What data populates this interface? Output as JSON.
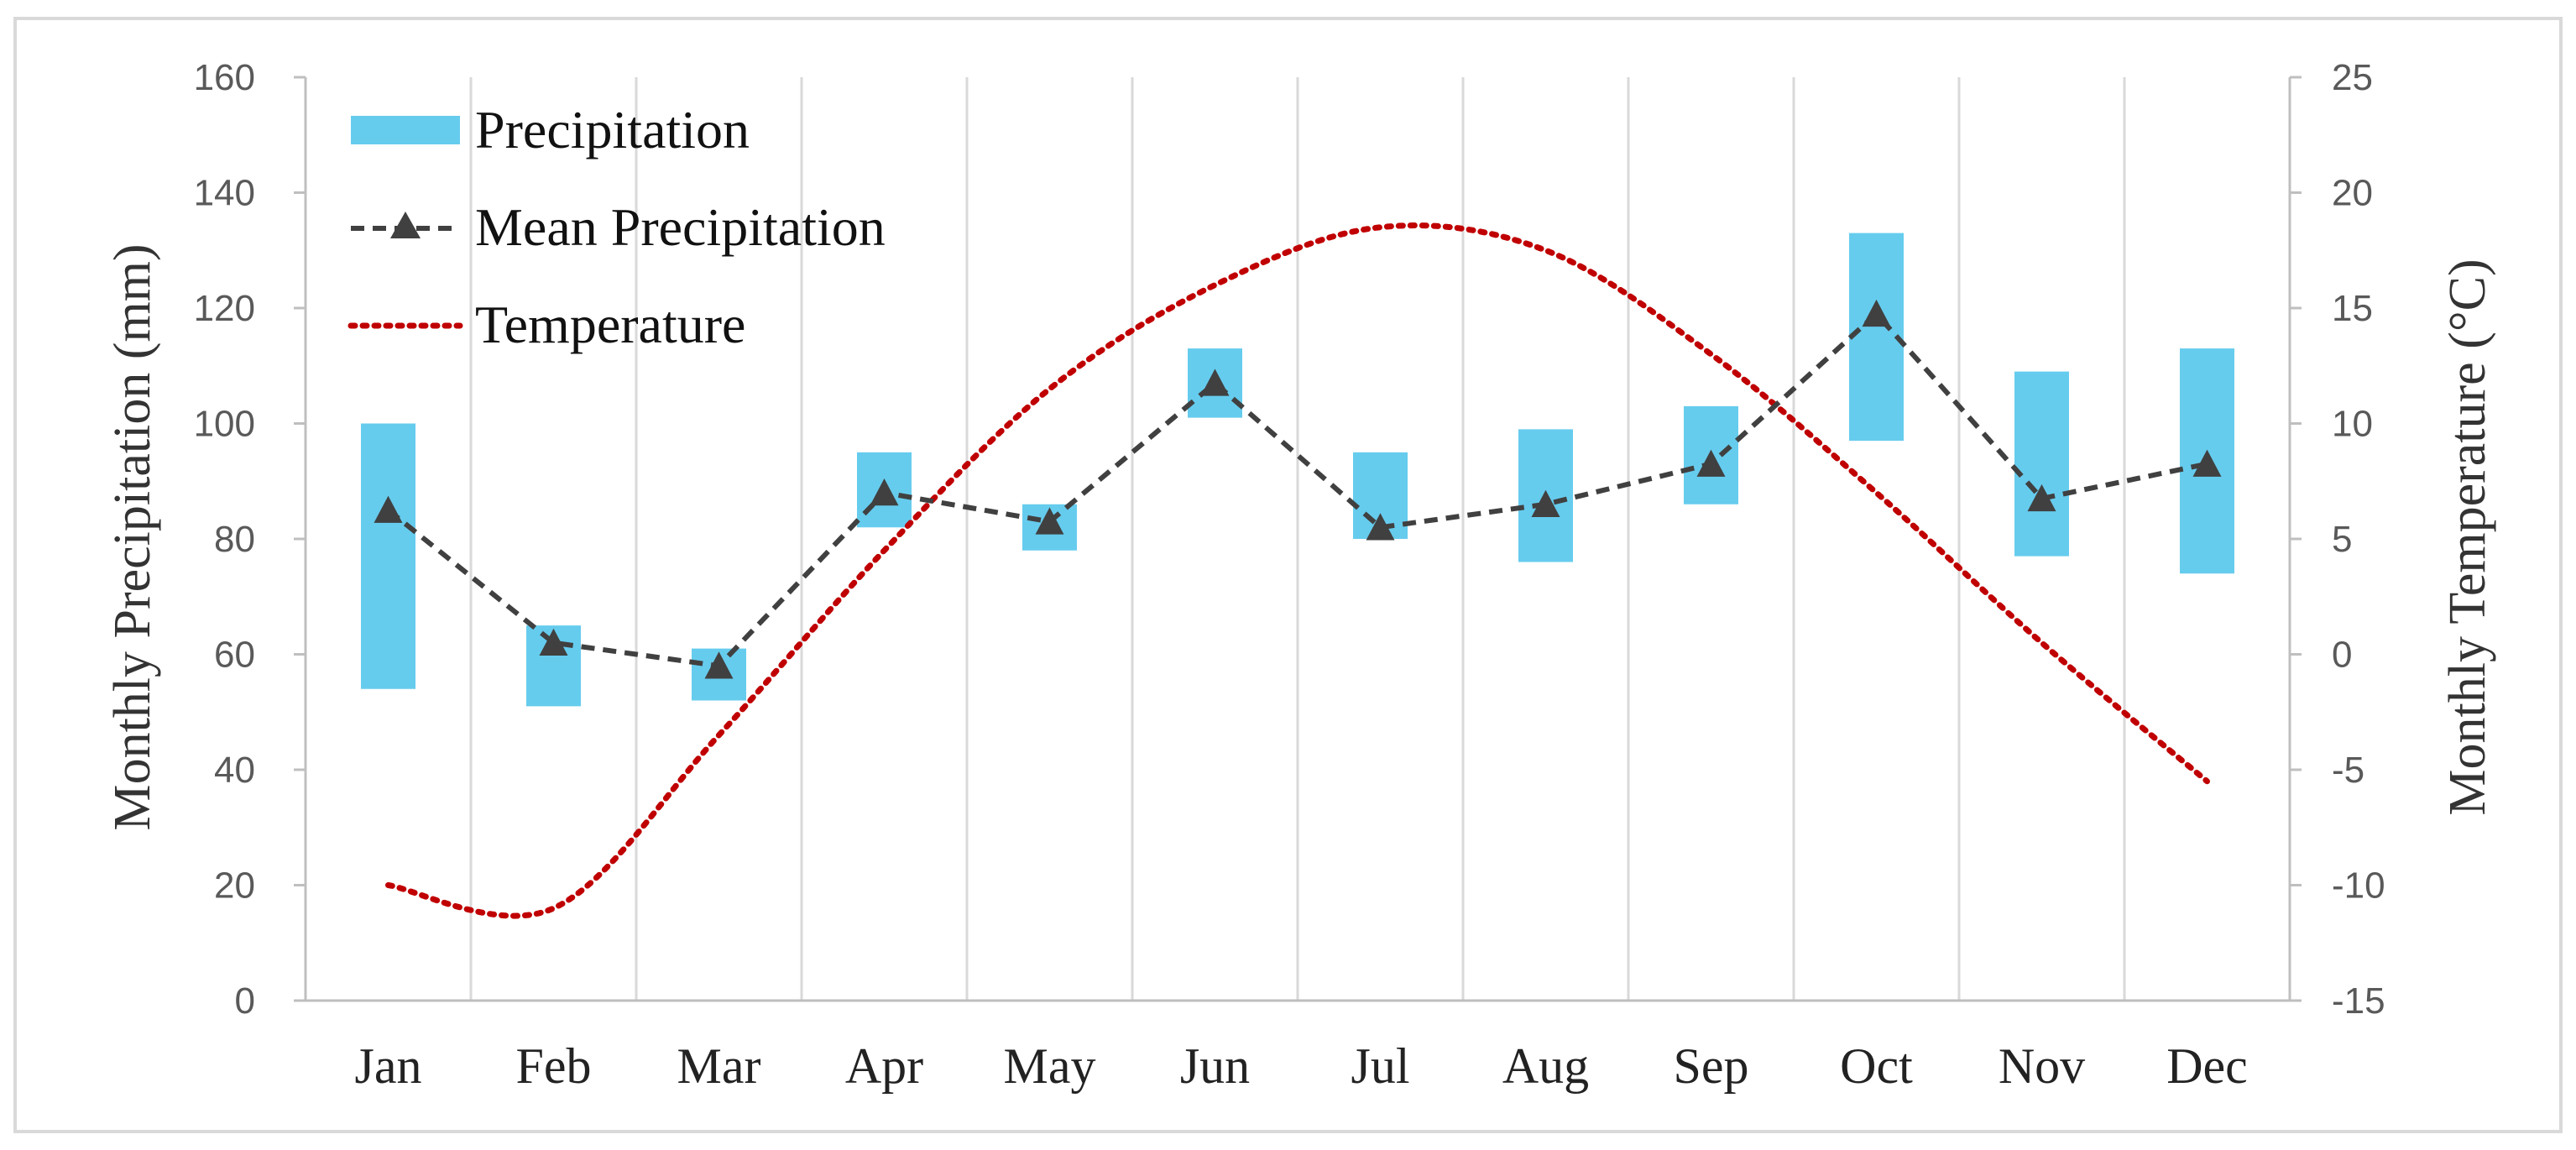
{
  "chart_data": {
    "type": "bar",
    "categories": [
      "Jan",
      "Feb",
      "Mar",
      "Apr",
      "May",
      "Jun",
      "Jul",
      "Aug",
      "Sep",
      "Oct",
      "Nov",
      "Dec"
    ],
    "series": [
      {
        "name": "Precipitation",
        "kind": "floating-bar",
        "low": [
          54,
          51,
          52,
          82,
          78,
          101,
          80,
          76,
          86,
          97,
          77,
          74
        ],
        "high": [
          100,
          65,
          61,
          95,
          86,
          113,
          95,
          99,
          103,
          133,
          109,
          113
        ],
        "axis": "left",
        "color": "#66ccee"
      },
      {
        "name": "Mean Precipitation",
        "kind": "line",
        "values": [
          85,
          62,
          58,
          88,
          83,
          107,
          82,
          86,
          93,
          119,
          87,
          93
        ],
        "axis": "left",
        "color": "#404040",
        "marker": "triangle",
        "dash": "dashed"
      },
      {
        "name": "Temperature",
        "kind": "line",
        "values": [
          -10,
          -11,
          -3.5,
          4.5,
          11.5,
          16,
          18.5,
          17.5,
          13,
          7,
          0.5,
          -5.5
        ],
        "axis": "right",
        "color": "#c00000",
        "dash": "dotted"
      }
    ],
    "ylabel": "Monthly Precipitation (mm)",
    "y2label": "Monthly Temperature (°C)",
    "xlabel": "",
    "ylim": [
      0,
      160
    ],
    "y2lim": [
      -15,
      25
    ],
    "yticks": [
      "0",
      "20",
      "40",
      "60",
      "80",
      "100",
      "120",
      "140",
      "160"
    ],
    "y2ticks": [
      "-15",
      "-10",
      "-5",
      "0",
      "5",
      "10",
      "15",
      "20",
      "25"
    ],
    "grid": "vertical",
    "legend": "top-left",
    "colors": {
      "grid": "#d9d9d9",
      "axis": "#bfbfbf",
      "frame": "#d9d9d9"
    }
  }
}
